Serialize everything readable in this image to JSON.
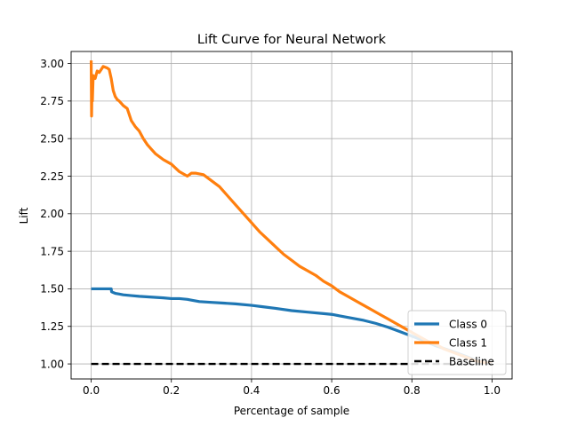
{
  "chart_data": {
    "type": "line",
    "title": "Lift Curve for Neural Network",
    "xlabel": "Percentage of sample",
    "ylabel": "Lift",
    "xlim": [
      -0.05,
      1.05
    ],
    "ylim": [
      0.9,
      3.08
    ],
    "xticks": [
      0.0,
      0.2,
      0.4,
      0.6,
      0.8,
      1.0
    ],
    "xtick_labels": [
      "0.0",
      "0.2",
      "0.4",
      "0.6",
      "0.8",
      "1.0"
    ],
    "yticks": [
      1.0,
      1.25,
      1.5,
      1.75,
      2.0,
      2.25,
      2.5,
      2.75,
      3.0
    ],
    "ytick_labels": [
      "1.00",
      "1.25",
      "1.50",
      "1.75",
      "2.00",
      "2.25",
      "2.50",
      "2.75",
      "3.00"
    ],
    "grid": true,
    "legend_position": "lower-right",
    "series": [
      {
        "name": "Class 0",
        "color": "#1f77b4",
        "style": "solid",
        "x": [
          0.0,
          0.01,
          0.02,
          0.03,
          0.05,
          0.051,
          0.06,
          0.07,
          0.08,
          0.1,
          0.12,
          0.15,
          0.18,
          0.2,
          0.22,
          0.24,
          0.25,
          0.27,
          0.3,
          0.33,
          0.36,
          0.4,
          0.43,
          0.46,
          0.5,
          0.54,
          0.58,
          0.6,
          0.62,
          0.65,
          0.68,
          0.71,
          0.74,
          0.77,
          0.8,
          0.83,
          0.86,
          0.9,
          0.93,
          0.96,
          1.0
        ],
        "y": [
          1.5,
          1.5,
          1.5,
          1.5,
          1.5,
          1.48,
          1.47,
          1.465,
          1.46,
          1.455,
          1.45,
          1.445,
          1.44,
          1.435,
          1.435,
          1.43,
          1.425,
          1.415,
          1.41,
          1.405,
          1.4,
          1.39,
          1.38,
          1.37,
          1.355,
          1.345,
          1.335,
          1.33,
          1.32,
          1.305,
          1.29,
          1.27,
          1.245,
          1.215,
          1.185,
          1.155,
          1.12,
          1.085,
          1.055,
          1.025,
          1.0
        ]
      },
      {
        "name": "Class 1",
        "color": "#ff7f0e",
        "style": "solid",
        "x": [
          0.0,
          0.001,
          0.002,
          0.003,
          0.005,
          0.01,
          0.015,
          0.02,
          0.03,
          0.04,
          0.045,
          0.05,
          0.055,
          0.06,
          0.065,
          0.07,
          0.08,
          0.09,
          0.1,
          0.11,
          0.12,
          0.13,
          0.14,
          0.15,
          0.16,
          0.18,
          0.2,
          0.22,
          0.24,
          0.25,
          0.26,
          0.28,
          0.3,
          0.32,
          0.34,
          0.36,
          0.38,
          0.4,
          0.42,
          0.44,
          0.46,
          0.48,
          0.5,
          0.52,
          0.54,
          0.56,
          0.58,
          0.6,
          0.62,
          0.64,
          0.66,
          0.68,
          0.7,
          0.72,
          0.74,
          0.76,
          0.78,
          0.8,
          0.82,
          0.84,
          0.86,
          0.88,
          0.9,
          0.92,
          0.94,
          0.96,
          0.98,
          1.0
        ],
        "y": [
          3.02,
          2.65,
          2.85,
          2.75,
          2.92,
          2.9,
          2.95,
          2.94,
          2.98,
          2.97,
          2.96,
          2.9,
          2.82,
          2.78,
          2.76,
          2.75,
          2.72,
          2.7,
          2.62,
          2.58,
          2.55,
          2.5,
          2.46,
          2.43,
          2.4,
          2.36,
          2.33,
          2.28,
          2.25,
          2.27,
          2.27,
          2.26,
          2.22,
          2.18,
          2.12,
          2.06,
          2.0,
          1.94,
          1.88,
          1.83,
          1.78,
          1.73,
          1.69,
          1.65,
          1.62,
          1.59,
          1.55,
          1.52,
          1.48,
          1.45,
          1.42,
          1.39,
          1.36,
          1.33,
          1.3,
          1.27,
          1.24,
          1.21,
          1.18,
          1.15,
          1.13,
          1.1,
          1.08,
          1.06,
          1.04,
          1.02,
          1.01,
          1.0
        ]
      },
      {
        "name": "Baseline",
        "color": "#000000",
        "style": "dashed",
        "x": [
          0.0,
          1.0
        ],
        "y": [
          1.0,
          1.0
        ]
      }
    ]
  }
}
